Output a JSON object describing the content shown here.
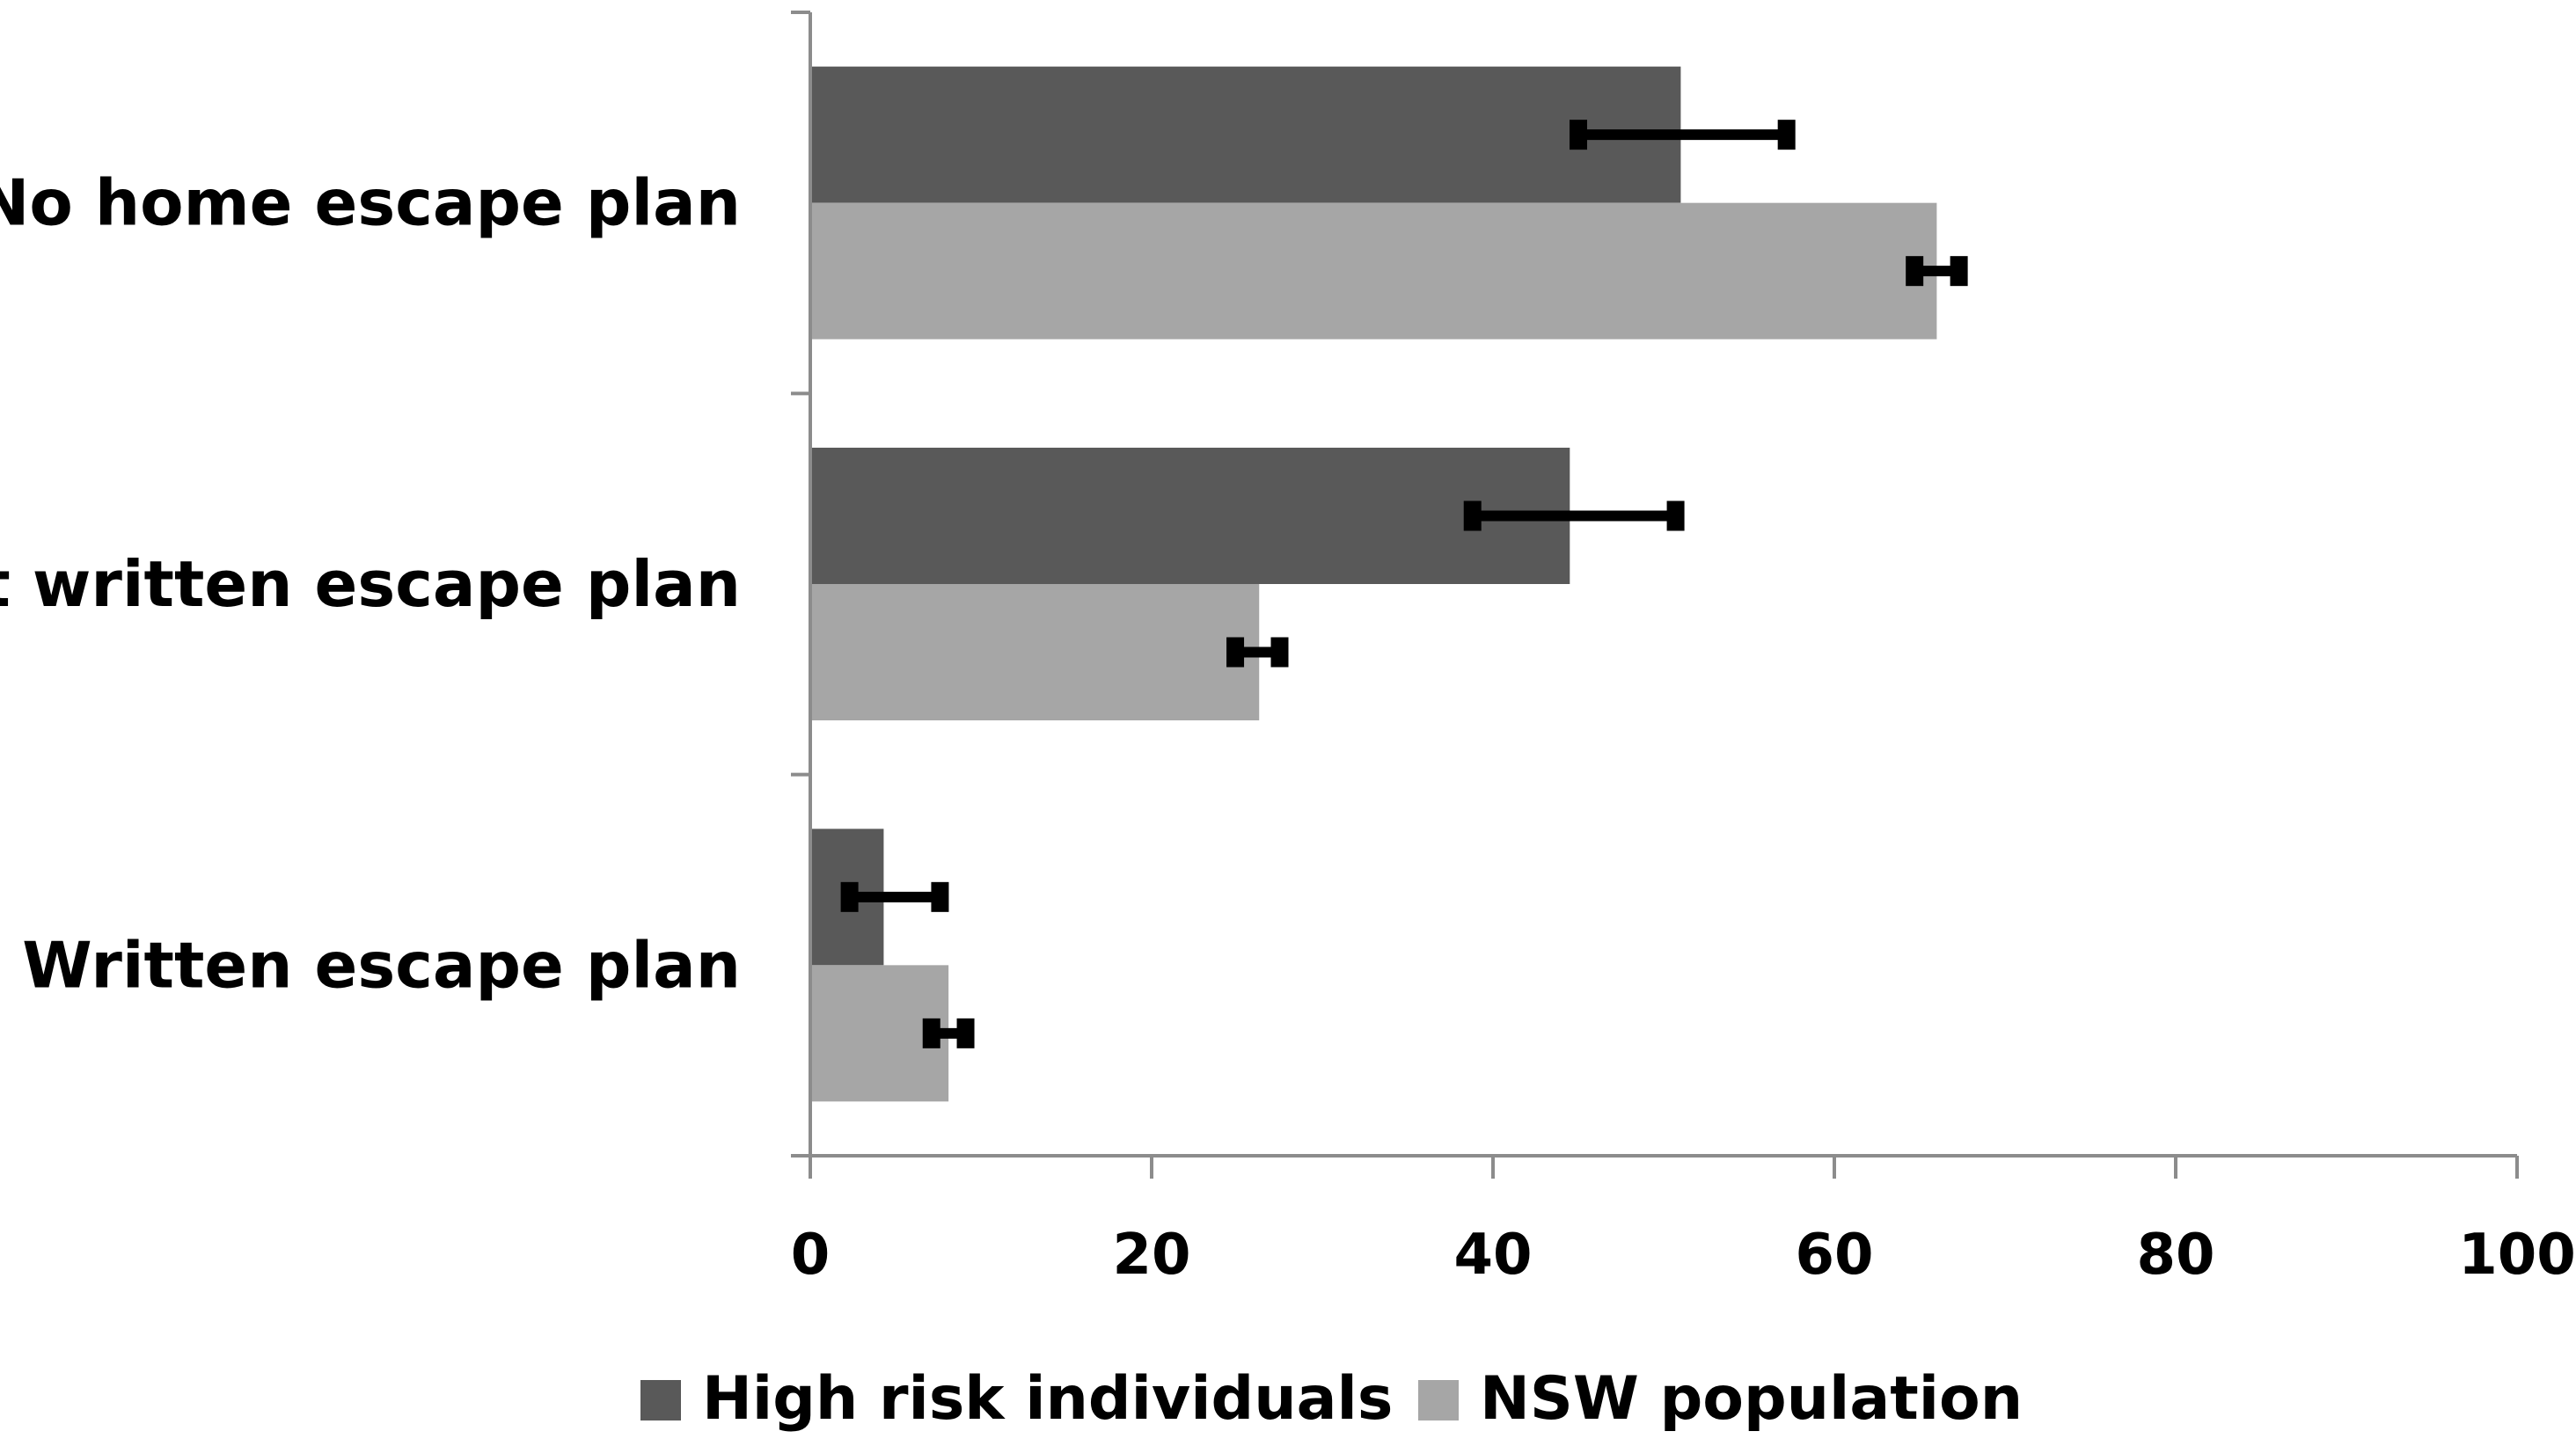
{
  "chart_data": {
    "type": "bar",
    "orientation": "horizontal",
    "title": "",
    "xlabel": "",
    "ylabel": "",
    "xlim": [
      0,
      100
    ],
    "xticks": [
      0,
      20,
      40,
      60,
      80,
      100
    ],
    "categories": [
      "No home escape plan",
      "Not written escape plan",
      "Written escape plan"
    ],
    "series": [
      {
        "name": "High risk individuals",
        "color": "#595959",
        "values": [
          51,
          44.5,
          4.3
        ],
        "error_low": [
          45,
          38.8,
          2.3
        ],
        "error_high": [
          57.2,
          50.7,
          7.6
        ]
      },
      {
        "name": "NSW population",
        "color": "#a6a6a6",
        "values": [
          66,
          26.3,
          8.1
        ],
        "error_low": [
          64.7,
          24.9,
          7.1
        ],
        "error_high": [
          67.3,
          27.5,
          9.1
        ]
      }
    ],
    "grid": false,
    "legend_position": "bottom"
  }
}
